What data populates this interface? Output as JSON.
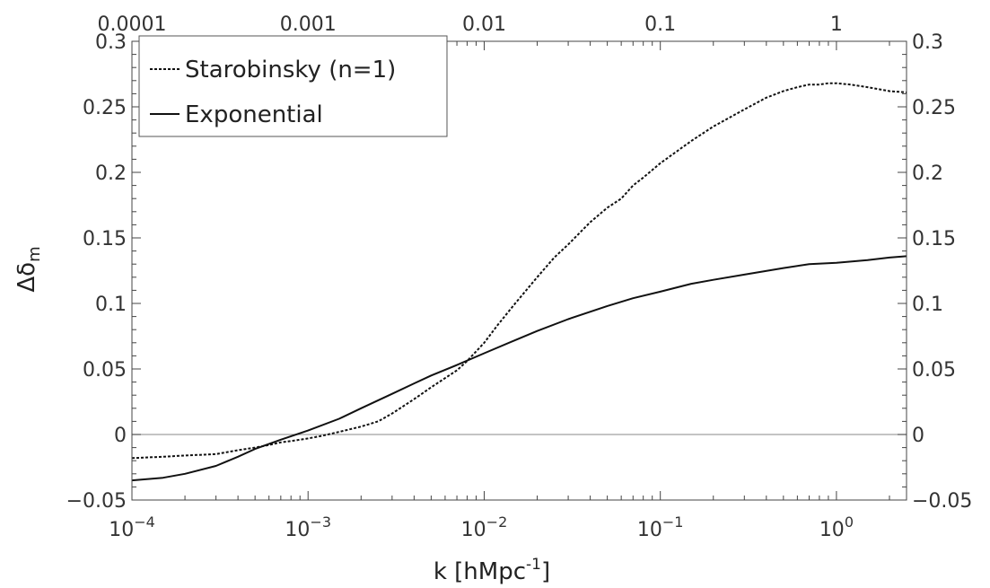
{
  "chart_data": {
    "type": "line",
    "xscale": "log",
    "xlim": [
      0.0001,
      2.5
    ],
    "ylim": [
      -0.05,
      0.3
    ],
    "xlabel_main": "k [hMpc",
    "xlabel_sup": "-1",
    "xlabel_close": "]",
    "ylabel_main": "Δδ",
    "ylabel_sub": "m",
    "y_ticks": [
      -0.05,
      0,
      0.05,
      0.1,
      0.15,
      0.2,
      0.25,
      0.3
    ],
    "y_tick_labels": [
      "−0.05",
      "0",
      "0.05",
      "0.1",
      "0.15",
      "0.2",
      "0.25",
      "0.3"
    ],
    "x_ticks": [
      0.0001,
      0.001,
      0.01,
      0.1,
      1
    ],
    "x_bottom_tick_base": [
      "10",
      "10",
      "10",
      "10",
      "10"
    ],
    "x_bottom_tick_exp": [
      "−4",
      "−3",
      "−2",
      "−1",
      "0"
    ],
    "x_top_tick_labels": [
      "0.0001",
      "0.001",
      "0.01",
      "0.1",
      "1"
    ],
    "zero_line": true,
    "legend_position": "top-left",
    "series": [
      {
        "name": "Starobinsky (n=1)",
        "style": "dotted",
        "color": "#111111",
        "x": [
          0.0001,
          0.00015,
          0.0002,
          0.0003,
          0.0004,
          0.0005,
          0.0006,
          0.0007,
          0.0008,
          0.001,
          0.0012,
          0.0015,
          0.002,
          0.0025,
          0.003,
          0.004,
          0.005,
          0.006,
          0.007,
          0.008,
          0.01,
          0.012,
          0.015,
          0.02,
          0.025,
          0.03,
          0.04,
          0.05,
          0.06,
          0.07,
          0.08,
          0.1,
          0.15,
          0.2,
          0.3,
          0.4,
          0.5,
          0.6,
          0.7,
          0.8,
          0.9,
          1.0,
          1.2,
          1.5,
          2.0,
          2.5
        ],
        "y": [
          -0.018,
          -0.017,
          -0.016,
          -0.015,
          -0.012,
          -0.01,
          -0.008,
          -0.006,
          -0.005,
          -0.003,
          -0.001,
          0.002,
          0.006,
          0.01,
          0.016,
          0.027,
          0.036,
          0.043,
          0.049,
          0.056,
          0.07,
          0.084,
          0.1,
          0.12,
          0.135,
          0.145,
          0.162,
          0.173,
          0.18,
          0.19,
          0.196,
          0.207,
          0.224,
          0.235,
          0.248,
          0.257,
          0.262,
          0.265,
          0.267,
          0.267,
          0.268,
          0.268,
          0.267,
          0.265,
          0.262,
          0.261
        ]
      },
      {
        "name": "Exponential",
        "style": "solid",
        "color": "#111111",
        "x": [
          0.0001,
          0.00015,
          0.0002,
          0.0003,
          0.0004,
          0.0005,
          0.0007,
          0.001,
          0.0015,
          0.002,
          0.003,
          0.004,
          0.005,
          0.007,
          0.01,
          0.015,
          0.02,
          0.03,
          0.05,
          0.07,
          0.1,
          0.15,
          0.2,
          0.3,
          0.5,
          0.7,
          1.0,
          1.5,
          2.0,
          2.5
        ],
        "y": [
          -0.035,
          -0.033,
          -0.03,
          -0.024,
          -0.017,
          -0.011,
          -0.004,
          0.003,
          0.012,
          0.02,
          0.031,
          0.039,
          0.045,
          0.053,
          0.062,
          0.072,
          0.079,
          0.088,
          0.098,
          0.104,
          0.109,
          0.115,
          0.118,
          0.122,
          0.127,
          0.13,
          0.131,
          0.133,
          0.135,
          0.136
        ]
      }
    ]
  }
}
